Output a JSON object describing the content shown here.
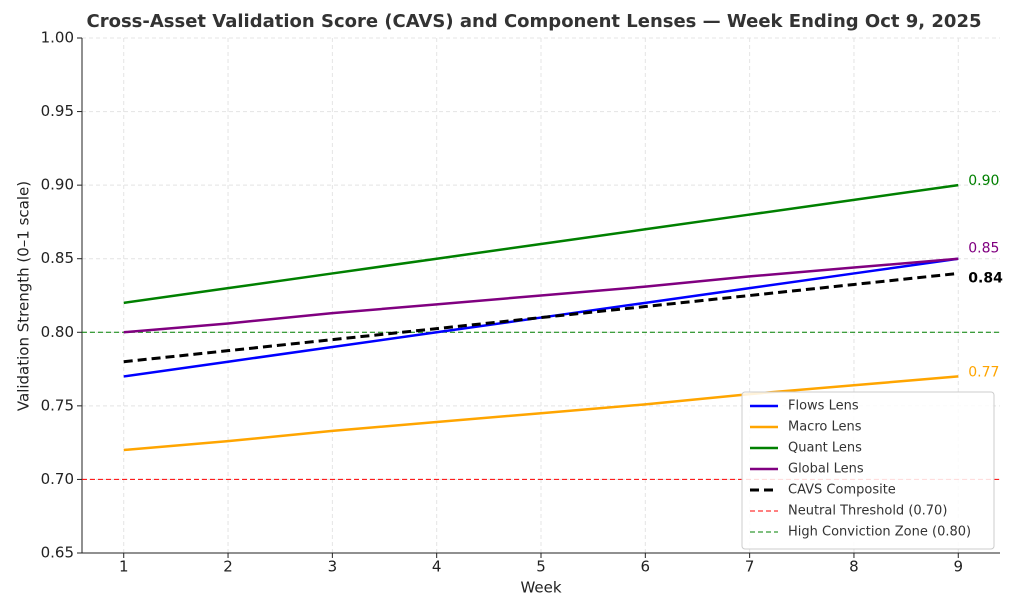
{
  "chart_data": {
    "type": "line",
    "title": "Cross-Asset Validation Score (CAVS) and Component Lenses — Week Ending Oct 9, 2025",
    "x_label": "Week",
    "y_label": "Validation Strength (0–1 scale)",
    "x": [
      1,
      2,
      3,
      4,
      5,
      6,
      7,
      8,
      9
    ],
    "series": [
      {
        "name": "Flows Lens",
        "color": "#0000ff",
        "style": "solid",
        "values": [
          0.77,
          0.78,
          0.79,
          0.8,
          0.81,
          0.82,
          0.83,
          0.84,
          0.85
        ]
      },
      {
        "name": "Macro Lens",
        "color": "#ffa500",
        "style": "solid",
        "values": [
          0.72,
          0.726,
          0.733,
          0.739,
          0.745,
          0.751,
          0.758,
          0.764,
          0.77
        ],
        "value_labels": [
          null,
          null,
          null,
          null,
          null,
          null,
          null,
          null,
          "0.77"
        ]
      },
      {
        "name": "Quant Lens",
        "color": "#008000",
        "style": "solid",
        "values": [
          0.82,
          0.83,
          0.84,
          0.85,
          0.86,
          0.87,
          0.88,
          0.89,
          0.9
        ],
        "value_labels": [
          null,
          null,
          null,
          null,
          null,
          null,
          null,
          null,
          "0.90"
        ]
      },
      {
        "name": "Global Lens",
        "color": "#800080",
        "style": "solid",
        "values": [
          0.8,
          0.806,
          0.813,
          0.819,
          0.825,
          0.831,
          0.838,
          0.844,
          0.85
        ],
        "value_labels": [
          null,
          null,
          null,
          null,
          null,
          null,
          null,
          null,
          "0.85"
        ]
      },
      {
        "name": "CAVS Composite",
        "color": "#000000",
        "style": "dashed",
        "values": [
          0.78,
          0.7875,
          0.795,
          0.8025,
          0.81,
          0.8175,
          0.825,
          0.8325,
          0.84
        ],
        "value_labels": [
          null,
          null,
          null,
          null,
          null,
          null,
          null,
          null,
          "0.84"
        ]
      }
    ],
    "reference_lines": [
      {
        "name": "Neutral Threshold (0.70)",
        "color": "#ff0000",
        "value": 0.7
      },
      {
        "name": "High Conviction Zone (0.80)",
        "color": "#008000",
        "value": 0.8
      }
    ],
    "xlim": [
      0.6,
      9.4
    ],
    "ylim": [
      0.65,
      1.0
    ],
    "xticks": [
      1,
      2,
      3,
      4,
      5,
      6,
      7,
      8,
      9
    ],
    "yticks": [
      {
        "value": 0.65,
        "label": "0.65"
      },
      {
        "value": 0.7,
        "label": "0.70"
      },
      {
        "value": 0.75,
        "label": "0.75"
      },
      {
        "value": 0.8,
        "label": "0.80"
      },
      {
        "value": 0.85,
        "label": "0.85"
      },
      {
        "value": 0.9,
        "label": "0.90"
      },
      {
        "value": 0.95,
        "label": "0.95"
      },
      {
        "value": 1.0,
        "label": "1.00"
      }
    ],
    "grid": true,
    "legend": "lower right"
  }
}
